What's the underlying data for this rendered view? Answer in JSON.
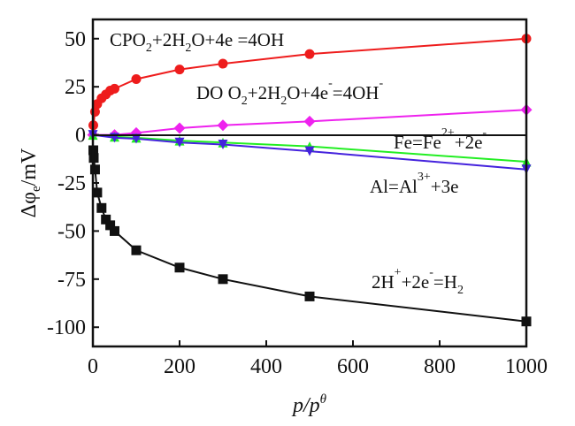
{
  "chart_data": {
    "type": "line",
    "xlabel": "p/pθ",
    "xlabel_parts": {
      "main": "p/p",
      "sup": "θ"
    },
    "ylabel": "Δφe/mV",
    "ylabel_parts": {
      "main": "Δφ",
      "sub": "e",
      "unit": "/mV"
    },
    "xlim": [
      0,
      1000
    ],
    "ylim": [
      -110,
      60
    ],
    "xticks": [
      "0",
      "200",
      "400",
      "600",
      "800",
      "1000"
    ],
    "yticks": [
      "50",
      "25",
      "0",
      "-25",
      "-50",
      "-75",
      "-100"
    ],
    "grid": false,
    "series": [
      {
        "color": "#ee1c1c",
        "marker": "circle",
        "x": [
          1,
          5,
          10,
          20,
          30,
          40,
          50,
          100,
          200,
          300,
          500,
          1000
        ],
        "y": [
          5,
          12,
          16,
          19,
          21,
          23,
          24,
          29,
          34,
          37,
          42,
          50
        ]
      },
      {
        "color": "#ee22ee",
        "marker": "diamond",
        "x": [
          0,
          50,
          100,
          200,
          300,
          500,
          1000
        ],
        "y": [
          0,
          0,
          1,
          3.5,
          5,
          7,
          13
        ]
      },
      {
        "color": "#22ee22",
        "marker": "triangle-up",
        "x": [
          0,
          50,
          100,
          200,
          300,
          500,
          1000
        ],
        "y": [
          0,
          -1,
          -1.5,
          -3,
          -4,
          -6,
          -14
        ]
      },
      {
        "color": "#4422dd",
        "marker": "triangle-down",
        "x": [
          0,
          50,
          100,
          200,
          300,
          500,
          1000
        ],
        "y": [
          0,
          -1.5,
          -2,
          -4,
          -5,
          -8.5,
          -18
        ]
      },
      {
        "color": "#111111",
        "marker": "square",
        "x": [
          1,
          2,
          5,
          10,
          20,
          30,
          40,
          50,
          100,
          200,
          300,
          500,
          1000
        ],
        "y": [
          -8,
          -12,
          -18,
          -30,
          -38,
          -44,
          -47,
          -50,
          -60,
          -69,
          -75,
          -84,
          -97
        ]
      }
    ],
    "annotations": [
      {
        "parts": [
          [
            "CPO",
            ""
          ],
          [
            "2",
            "sub"
          ],
          [
            "+2H",
            ""
          ],
          [
            "2",
            "sub"
          ],
          [
            "O+4e =4OH",
            ""
          ]
        ]
      },
      {
        "parts": [
          [
            "DO O",
            ""
          ],
          [
            "2",
            "sub"
          ],
          [
            "+2H",
            ""
          ],
          [
            "2",
            "sub"
          ],
          [
            "O+4e",
            ""
          ],
          [
            "-",
            "sup"
          ],
          [
            "=4OH",
            ""
          ],
          [
            "-",
            "sup"
          ]
        ]
      },
      {
        "parts": [
          [
            "Fe=Fe",
            ""
          ],
          [
            "2+",
            "sup"
          ],
          [
            "+2e",
            ""
          ],
          [
            "-",
            "sup"
          ]
        ]
      },
      {
        "parts": [
          [
            "Al=Al",
            ""
          ],
          [
            "3+",
            "sup"
          ],
          [
            "+3e",
            ""
          ]
        ]
      },
      {
        "parts": [
          [
            "2H",
            ""
          ],
          [
            "+",
            "sup"
          ],
          [
            "+2e",
            ""
          ],
          [
            "-",
            "sup"
          ],
          [
            "=H",
            ""
          ],
          [
            "2",
            "sub"
          ]
        ]
      }
    ]
  }
}
